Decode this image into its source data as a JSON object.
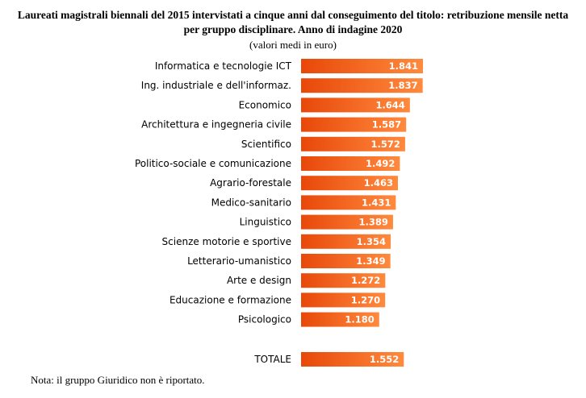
{
  "title": "Laureati magistrali biennali del 2015 intervistati a cinque anni dal conseguimento del titolo: retribuzione mensile netta per gruppo disciplinare. Anno di indagine 2020",
  "subtitle": "(valori medi in euro)",
  "note": "Nota: il gruppo Giuridico non è riportato.",
  "colors": {
    "bar_dark": "#e8480a",
    "bar_light": "#ff8a3d"
  },
  "chart_data": {
    "type": "bar",
    "orientation": "horizontal",
    "title": "Laureati magistrali biennali del 2015 intervistati a cinque anni dal conseguimento del titolo: retribuzione mensile netta per gruppo disciplinare. Anno di indagine 2020",
    "subtitle": "(valori medi in euro)",
    "categories": [
      "Informatica e tecnologie ICT",
      "Ing. industriale e dell'informaz.",
      "Economico",
      "Architettura e ingegneria civile",
      "Scientifico",
      "Politico-sociale e comunicazione",
      "Agrario-forestale",
      "Medico-sanitario",
      "Linguistico",
      "Scienze motorie e sportive",
      "Letterario-umanistico",
      "Arte e design",
      "Educazione e formazione",
      "Psicologico"
    ],
    "values": [
      1841,
      1837,
      1644,
      1587,
      1572,
      1492,
      1463,
      1431,
      1389,
      1354,
      1349,
      1272,
      1270,
      1180
    ],
    "value_labels": [
      "1.841",
      "1.837",
      "1.644",
      "1.587",
      "1.572",
      "1.492",
      "1.463",
      "1.431",
      "1.389",
      "1.354",
      "1.349",
      "1.272",
      "1.270",
      "1.180"
    ],
    "total": {
      "label": "TOTALE",
      "value": 1552,
      "value_label": "1.552"
    },
    "xlim": [
      0,
      1841
    ],
    "grid": false,
    "legend": "none"
  }
}
